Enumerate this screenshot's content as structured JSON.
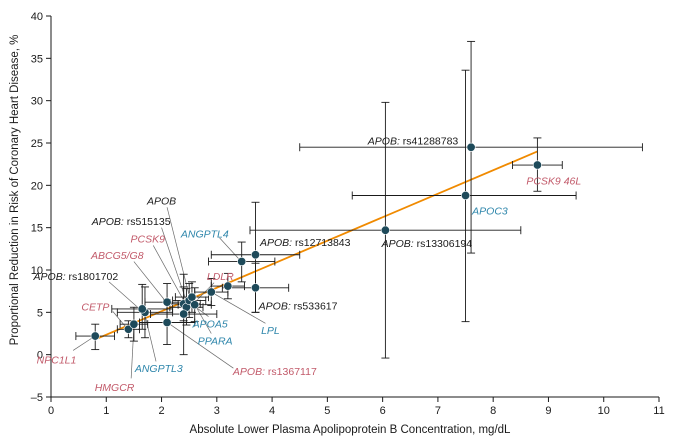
{
  "chart_data": {
    "type": "scatter",
    "title": "",
    "xlabel": "Absolute Lower Plasma Apolipoprotein B Concentration, mg/dL",
    "ylabel": "Proportional Reduction in Risk of Coronary Heart Disease, %",
    "xlim": [
      0,
      11
    ],
    "ylim": [
      -5,
      40
    ],
    "x_ticks": [
      "0",
      "1",
      "2",
      "3",
      "4",
      "5",
      "6",
      "7",
      "8",
      "9",
      "10",
      "11"
    ],
    "y_ticks": [
      "–5",
      "0",
      "5",
      "10",
      "15",
      "20",
      "25",
      "30",
      "35",
      "40"
    ],
    "grid": false,
    "fit_line": {
      "x": [
        0.8,
        8.8
      ],
      "y": [
        1.8,
        24.0
      ]
    },
    "colors": {
      "point": "#1e4a5a",
      "errorbar": "#1a1a1a",
      "fit": "#f08a00",
      "label_dark": "#1a1a1a",
      "label_blue": "#2e86ab",
      "label_pink": "#c25a6a"
    },
    "points": [
      {
        "gene": "NPC1L1",
        "variant": "",
        "x": 0.8,
        "y": 2.2,
        "x_lo": 0.45,
        "x_hi": 1.15,
        "y_lo": 0.6,
        "y_hi": 3.6,
        "color": "pink"
      },
      {
        "gene": "CETP",
        "variant": "",
        "x": 1.4,
        "y": 3.0,
        "x_lo": 1.2,
        "x_hi": 1.6,
        "y_lo": 2.0,
        "y_hi": 4.0,
        "color": "pink"
      },
      {
        "gene": "HMGCR",
        "variant": "",
        "x": 1.5,
        "y": 3.6,
        "x_lo": 1.25,
        "x_hi": 1.75,
        "y_lo": 1.6,
        "y_hi": 5.6,
        "color": "pink"
      },
      {
        "gene": "ANGPTL3",
        "variant": "",
        "x": 1.7,
        "y": 5.0,
        "x_lo": 1.2,
        "x_hi": 2.2,
        "y_lo": 2.0,
        "y_hi": 8.0,
        "color": "blue"
      },
      {
        "gene": "APOB",
        "variant": "rs1801702",
        "x": 1.65,
        "y": 5.4,
        "x_lo": 1.1,
        "x_hi": 2.2,
        "y_lo": 3.0,
        "y_hi": 8.3,
        "color": "dark"
      },
      {
        "gene": "ABCG5/G8",
        "variant": "",
        "x": 2.1,
        "y": 6.2,
        "x_lo": 1.7,
        "x_hi": 2.5,
        "y_lo": 4.0,
        "y_hi": 8.4,
        "color": "pink"
      },
      {
        "gene": "APOB",
        "variant": "rs1367117",
        "x": 2.1,
        "y": 3.8,
        "x_lo": 1.6,
        "x_hi": 2.6,
        "y_lo": 1.2,
        "y_hi": 6.5,
        "color": "pink"
      },
      {
        "gene": "PCSK9",
        "variant": "",
        "x": 2.4,
        "y": 6.0,
        "x_lo": 2.1,
        "x_hi": 2.7,
        "y_lo": 4.0,
        "y_hi": 8.0,
        "color": "pink"
      },
      {
        "gene": "APOB",
        "variant": "rs515135",
        "x": 2.45,
        "y": 5.6,
        "x_lo": 2.15,
        "x_hi": 2.75,
        "y_lo": 3.5,
        "y_hi": 7.8,
        "color": "dark"
      },
      {
        "gene": "APOB",
        "variant": "",
        "x": 2.5,
        "y": 6.4,
        "x_lo": 2.2,
        "x_hi": 2.8,
        "y_lo": 4.4,
        "y_hi": 8.4,
        "color": "dark"
      },
      {
        "gene": "PPARA",
        "variant": "",
        "x": 2.55,
        "y": 6.8,
        "x_lo": 2.25,
        "x_hi": 2.85,
        "y_lo": 5.0,
        "y_hi": 8.6,
        "color": "blue"
      },
      {
        "gene": "APOA5",
        "variant": "",
        "x": 2.6,
        "y": 5.9,
        "x_lo": 2.3,
        "x_hi": 2.9,
        "y_lo": 3.9,
        "y_hi": 7.9,
        "color": "blue"
      },
      {
        "gene": "ANGPTL4",
        "variant": "",
        "x": 2.4,
        "y": 4.8,
        "x_lo": 1.8,
        "x_hi": 3.0,
        "y_lo": 0.0,
        "y_hi": 9.5,
        "color": "blue"
      },
      {
        "gene": "LPL",
        "variant": "",
        "x": 2.9,
        "y": 7.4,
        "x_lo": 2.6,
        "x_hi": 3.2,
        "y_lo": 5.8,
        "y_hi": 9.0,
        "color": "blue"
      },
      {
        "gene": "LDLR",
        "variant": "",
        "x": 3.2,
        "y": 8.1,
        "x_lo": 2.9,
        "x_hi": 3.5,
        "y_lo": 6.6,
        "y_hi": 9.6,
        "color": "pink"
      },
      {
        "gene": "APOB",
        "variant": "rs533617",
        "x": 3.7,
        "y": 7.9,
        "x_lo": 3.1,
        "x_hi": 4.3,
        "y_lo": 5.0,
        "y_hi": 10.8,
        "color": "dark"
      },
      {
        "gene": "APOB",
        "variant": "rs12713843",
        "x": 3.45,
        "y": 11.0,
        "x_lo": 2.85,
        "x_hi": 4.05,
        "y_lo": 8.6,
        "y_hi": 13.3,
        "color": "dark"
      },
      {
        "gene": "ANGPTL4",
        "variant": "",
        "x": 3.7,
        "y": 11.8,
        "x_lo": 2.9,
        "x_hi": 4.5,
        "y_lo": 5.0,
        "y_hi": 18.0,
        "color": "blue"
      },
      {
        "gene": "APOB",
        "variant": "rs13306194",
        "x": 6.05,
        "y": 14.7,
        "x_lo": 3.6,
        "x_hi": 8.5,
        "y_lo": -0.4,
        "y_hi": 29.8,
        "color": "dark"
      },
      {
        "gene": "APOC3",
        "variant": "",
        "x": 7.5,
        "y": 18.8,
        "x_lo": 5.45,
        "x_hi": 9.5,
        "y_lo": 3.9,
        "y_hi": 33.6,
        "color": "blue"
      },
      {
        "gene": "APOB",
        "variant": "rs41288783",
        "x": 7.6,
        "y": 24.5,
        "x_lo": 4.5,
        "x_hi": 10.7,
        "y_lo": 12.0,
        "y_hi": 37.0,
        "color": "dark"
      },
      {
        "gene": "PCSK9",
        "variant": "46L",
        "x": 8.8,
        "y": 22.4,
        "x_lo": 8.35,
        "x_hi": 9.25,
        "y_lo": 19.3,
        "y_hi": 25.6,
        "color": "pink"
      }
    ],
    "labels": [
      {
        "gene": "APOB",
        "variant": "rs41288783",
        "color": "dark",
        "x": 6.55,
        "y": 25.3,
        "anchor": "middle"
      },
      {
        "gene": "PCSK9 46L",
        "variant": "",
        "color": "pink",
        "x": 8.6,
        "y": 20.6,
        "anchor": "start"
      },
      {
        "gene": "APOC3",
        "variant": "",
        "color": "blue",
        "x": 7.62,
        "y": 17.0,
        "anchor": "start"
      },
      {
        "gene": "APOB",
        "variant": "rs13306194",
        "color": "dark",
        "x": 6.8,
        "y": 13.2,
        "anchor": "middle"
      },
      {
        "gene": "APOB",
        "variant": "rs12713843",
        "color": "dark",
        "x": 4.6,
        "y": 13.3,
        "anchor": "middle"
      },
      {
        "gene": "ANGPTL4",
        "variant": "",
        "color": "blue",
        "x": 2.35,
        "y": 14.3,
        "anchor": "start"
      },
      {
        "gene": "APOB",
        "variant": "",
        "color": "dark",
        "x": 2.0,
        "y": 18.2,
        "anchor": "middle"
      },
      {
        "gene": "APOB",
        "variant": "rs515135",
        "color": "dark",
        "x": 1.45,
        "y": 15.8,
        "anchor": "middle"
      },
      {
        "gene": "PCSK9",
        "variant": "",
        "color": "pink",
        "x": 1.75,
        "y": 13.7,
        "anchor": "middle"
      },
      {
        "gene": "ABCG5/G8",
        "variant": "",
        "color": "pink",
        "x": 1.2,
        "y": 11.8,
        "anchor": "middle"
      },
      {
        "gene": "APOB",
        "variant": "rs1801702",
        "color": "dark",
        "x": 0.45,
        "y": 9.3,
        "anchor": "middle"
      },
      {
        "gene": "LDLR",
        "variant": "",
        "color": "pink",
        "x": 2.82,
        "y": 9.3,
        "anchor": "start"
      },
      {
        "gene": "APOB",
        "variant": "rs533617",
        "color": "dark",
        "x": 4.47,
        "y": 5.8,
        "anchor": "middle"
      },
      {
        "gene": "LPL",
        "variant": "",
        "color": "blue",
        "x": 3.97,
        "y": 2.9,
        "anchor": "middle"
      },
      {
        "gene": "APOA5",
        "variant": "",
        "color": "blue",
        "x": 2.88,
        "y": 3.7,
        "anchor": "middle"
      },
      {
        "gene": "PPARA",
        "variant": "",
        "color": "blue",
        "x": 2.97,
        "y": 1.7,
        "anchor": "middle"
      },
      {
        "gene": "CETP",
        "variant": "",
        "color": "pink",
        "x": 0.55,
        "y": 5.7,
        "anchor": "start"
      },
      {
        "gene": "NPC1L1",
        "variant": "",
        "color": "pink",
        "x": 0.1,
        "y": -0.6,
        "anchor": "middle"
      },
      {
        "gene": "ANGPTL3",
        "variant": "",
        "color": "blue",
        "x": 1.95,
        "y": -1.6,
        "anchor": "middle"
      },
      {
        "gene": "HMGCR",
        "variant": "",
        "color": "pink",
        "x": 1.15,
        "y": -3.8,
        "anchor": "middle"
      },
      {
        "gene": "APOB",
        "variant": "rs1367117",
        "color": "pink",
        "x": 4.05,
        "y": -1.9,
        "anchor": "middle"
      }
    ],
    "leaders": [
      {
        "from": [
          3.05,
          13.8
        ],
        "to": [
          3.4,
          11.3
        ]
      },
      {
        "from": [
          2.1,
          17.4
        ],
        "to": [
          2.5,
          7.0
        ]
      },
      {
        "from": [
          2.0,
          15.0
        ],
        "to": [
          2.45,
          6.3
        ]
      },
      {
        "from": [
          1.85,
          12.9
        ],
        "to": [
          2.4,
          6.4
        ]
      },
      {
        "from": [
          1.5,
          11.0
        ],
        "to": [
          2.05,
          6.5
        ]
      },
      {
        "from": [
          1.05,
          8.6
        ],
        "to": [
          1.55,
          5.7
        ]
      },
      {
        "from": [
          2.95,
          8.5
        ],
        "to": [
          2.65,
          6.5
        ]
      },
      {
        "from": [
          3.88,
          3.7
        ],
        "to": [
          2.95,
          7.2
        ]
      },
      {
        "from": [
          2.85,
          4.5
        ],
        "to": [
          2.6,
          5.7
        ]
      },
      {
        "from": [
          2.9,
          2.5
        ],
        "to": [
          2.55,
          6.5
        ]
      },
      {
        "from": [
          1.12,
          5.1
        ],
        "to": [
          1.35,
          3.3
        ]
      },
      {
        "from": [
          0.4,
          0.5
        ],
        "to": [
          0.75,
          2.0
        ]
      },
      {
        "from": [
          1.9,
          -0.8
        ],
        "to": [
          1.7,
          4.7
        ]
      },
      {
        "from": [
          1.45,
          -2.8
        ],
        "to": [
          1.5,
          3.4
        ]
      },
      {
        "from": [
          3.3,
          -1.6
        ],
        "to": [
          2.15,
          3.6
        ]
      }
    ]
  }
}
